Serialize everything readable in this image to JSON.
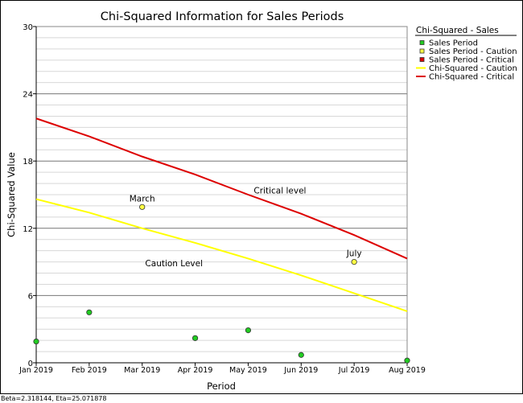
{
  "footer_text": "Beta=2.318144, Eta=25.071878",
  "chart_data": {
    "type": "scatter",
    "title": "Chi-Squared Information for Sales Periods",
    "xlabel": "Period",
    "ylabel": "Chi-Squared Value",
    "categories": [
      "Jan 2019",
      "Feb 2019",
      "Mar 2019",
      "Apr 2019",
      "May 2019",
      "Jun 2019",
      "Jul 2019",
      "Aug 2019"
    ],
    "ylim": [
      0,
      30
    ],
    "yticks": [
      "0",
      "6",
      "12",
      "18",
      "24",
      "30"
    ],
    "grid": true,
    "legend_position": "right",
    "legend_title": "Chi-Squared - Sales",
    "series": [
      {
        "name": "Sales Period",
        "kind": "points",
        "color": "#22cc22",
        "x": [
          0,
          1,
          3,
          4,
          5,
          7
        ],
        "values": [
          1.9,
          4.5,
          2.2,
          2.9,
          0.7,
          0.2
        ]
      },
      {
        "name": "Sales Period - Caution",
        "kind": "points",
        "color": "#ffff44",
        "x": [
          2,
          6
        ],
        "values": [
          13.9,
          9.0
        ],
        "labels": [
          "March",
          "July"
        ]
      },
      {
        "name": "Sales Period - Critical",
        "kind": "points",
        "color": "#dd0000",
        "x": [],
        "values": []
      },
      {
        "name": "Chi-Squared - Caution",
        "kind": "line",
        "color": "#ffff00",
        "x": [
          0,
          1,
          2,
          3,
          4,
          5,
          6,
          7
        ],
        "values": [
          14.6,
          13.4,
          12.0,
          10.7,
          9.3,
          7.8,
          6.2,
          4.6
        ]
      },
      {
        "name": "Chi-Squared - Critical",
        "kind": "line",
        "color": "#dd0000",
        "x": [
          0,
          1,
          2,
          3,
          4,
          5,
          6,
          7
        ],
        "values": [
          21.8,
          20.2,
          18.4,
          16.8,
          15.0,
          13.3,
          11.4,
          9.3
        ]
      }
    ],
    "annotations": [
      {
        "text": "Critical level",
        "x": 4.6,
        "y": 15.1
      },
      {
        "text": "Caution Level",
        "x": 2.6,
        "y": 8.6
      }
    ]
  }
}
